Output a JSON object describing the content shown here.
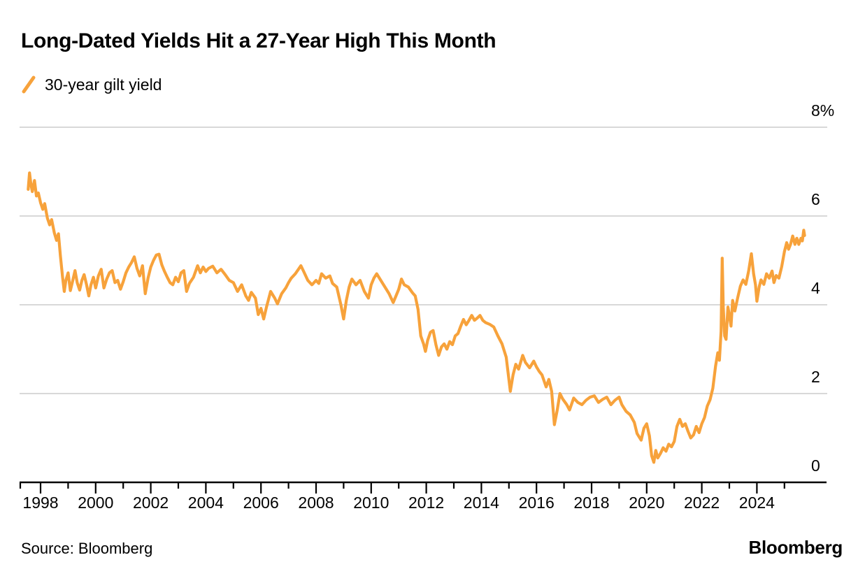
{
  "header": {
    "title": "Long-Dated Yields Hit a 27-Year High This Month"
  },
  "legend": {
    "label": "30-year gilt yield",
    "swatch_icon": "orange-slash-icon"
  },
  "footer": {
    "source": "Source: Bloomberg",
    "brand": "Bloomberg"
  },
  "colors": {
    "line": "#F7A23B",
    "grid": "#CCCCCC",
    "axis": "#000000",
    "text": "#000000",
    "background": "#FFFFFF"
  },
  "chart_data": {
    "type": "line",
    "title": "Long-Dated Yields Hit a 27-Year High This Month",
    "xlabel": "",
    "ylabel": "",
    "unit": "%",
    "grid": "horizontal",
    "legend_position": "top-left",
    "x_axis": {
      "range_years": [
        1997.2,
        2026.5
      ],
      "label_years": [
        1998,
        2000,
        2002,
        2004,
        2006,
        2008,
        2010,
        2012,
        2014,
        2016,
        2018,
        2020,
        2022,
        2024
      ],
      "minor_tick_years": [
        1999,
        2001,
        2003,
        2005,
        2007,
        2009,
        2011,
        2013,
        2015,
        2017,
        2019,
        2021,
        2023,
        2025
      ]
    },
    "y_axis": {
      "range": [
        0,
        8
      ],
      "gridline_values": [
        2,
        4,
        6,
        8
      ],
      "labels": [
        {
          "value": 8,
          "text": "8%"
        },
        {
          "value": 6,
          "text": "6"
        },
        {
          "value": 4,
          "text": "4"
        },
        {
          "value": 2,
          "text": "2"
        },
        {
          "value": 0,
          "text": "0"
        }
      ]
    },
    "series": [
      {
        "name": "30-year gilt yield",
        "color": "#F7A23B",
        "points": [
          [
            1997.55,
            6.6
          ],
          [
            1997.6,
            6.97
          ],
          [
            1997.65,
            6.72
          ],
          [
            1997.7,
            6.55
          ],
          [
            1997.78,
            6.8
          ],
          [
            1997.85,
            6.45
          ],
          [
            1997.92,
            6.52
          ],
          [
            1998.0,
            6.3
          ],
          [
            1998.08,
            6.15
          ],
          [
            1998.15,
            6.28
          ],
          [
            1998.25,
            5.95
          ],
          [
            1998.33,
            5.8
          ],
          [
            1998.4,
            5.92
          ],
          [
            1998.5,
            5.62
          ],
          [
            1998.58,
            5.45
          ],
          [
            1998.65,
            5.6
          ],
          [
            1998.72,
            5.1
          ],
          [
            1998.8,
            4.62
          ],
          [
            1998.86,
            4.3
          ],
          [
            1998.92,
            4.55
          ],
          [
            1999.0,
            4.72
          ],
          [
            1999.08,
            4.32
          ],
          [
            1999.17,
            4.55
          ],
          [
            1999.25,
            4.77
          ],
          [
            1999.33,
            4.5
          ],
          [
            1999.42,
            4.33
          ],
          [
            1999.5,
            4.55
          ],
          [
            1999.58,
            4.68
          ],
          [
            1999.67,
            4.45
          ],
          [
            1999.75,
            4.2
          ],
          [
            1999.83,
            4.45
          ],
          [
            1999.92,
            4.62
          ],
          [
            2000.0,
            4.38
          ],
          [
            2000.1,
            4.65
          ],
          [
            2000.2,
            4.8
          ],
          [
            2000.3,
            4.38
          ],
          [
            2000.4,
            4.58
          ],
          [
            2000.5,
            4.72
          ],
          [
            2000.6,
            4.77
          ],
          [
            2000.7,
            4.5
          ],
          [
            2000.8,
            4.55
          ],
          [
            2000.9,
            4.35
          ],
          [
            2001.0,
            4.52
          ],
          [
            2001.1,
            4.72
          ],
          [
            2001.2,
            4.85
          ],
          [
            2001.3,
            4.95
          ],
          [
            2001.4,
            5.08
          ],
          [
            2001.5,
            4.82
          ],
          [
            2001.6,
            4.65
          ],
          [
            2001.7,
            4.88
          ],
          [
            2001.8,
            4.25
          ],
          [
            2001.9,
            4.6
          ],
          [
            2002.0,
            4.85
          ],
          [
            2002.1,
            5.0
          ],
          [
            2002.2,
            5.12
          ],
          [
            2002.3,
            5.14
          ],
          [
            2002.4,
            4.9
          ],
          [
            2002.5,
            4.75
          ],
          [
            2002.6,
            4.62
          ],
          [
            2002.7,
            4.5
          ],
          [
            2002.8,
            4.45
          ],
          [
            2002.9,
            4.62
          ],
          [
            2003.0,
            4.52
          ],
          [
            2003.1,
            4.72
          ],
          [
            2003.2,
            4.77
          ],
          [
            2003.3,
            4.3
          ],
          [
            2003.4,
            4.48
          ],
          [
            2003.55,
            4.62
          ],
          [
            2003.7,
            4.88
          ],
          [
            2003.8,
            4.72
          ],
          [
            2003.9,
            4.85
          ],
          [
            2004.0,
            4.75
          ],
          [
            2004.1,
            4.82
          ],
          [
            2004.25,
            4.87
          ],
          [
            2004.4,
            4.72
          ],
          [
            2004.55,
            4.8
          ],
          [
            2004.7,
            4.68
          ],
          [
            2004.85,
            4.55
          ],
          [
            2005.0,
            4.5
          ],
          [
            2005.15,
            4.3
          ],
          [
            2005.3,
            4.45
          ],
          [
            2005.45,
            4.2
          ],
          [
            2005.55,
            4.1
          ],
          [
            2005.65,
            4.28
          ],
          [
            2005.8,
            4.15
          ],
          [
            2005.9,
            3.78
          ],
          [
            2006.0,
            3.92
          ],
          [
            2006.1,
            3.68
          ],
          [
            2006.2,
            3.95
          ],
          [
            2006.35,
            4.3
          ],
          [
            2006.5,
            4.15
          ],
          [
            2006.6,
            4.02
          ],
          [
            2006.75,
            4.25
          ],
          [
            2006.9,
            4.38
          ],
          [
            2007.0,
            4.5
          ],
          [
            2007.1,
            4.6
          ],
          [
            2007.25,
            4.7
          ],
          [
            2007.45,
            4.88
          ],
          [
            2007.55,
            4.75
          ],
          [
            2007.7,
            4.55
          ],
          [
            2007.85,
            4.45
          ],
          [
            2008.0,
            4.55
          ],
          [
            2008.1,
            4.48
          ],
          [
            2008.2,
            4.7
          ],
          [
            2008.35,
            4.6
          ],
          [
            2008.5,
            4.65
          ],
          [
            2008.6,
            4.48
          ],
          [
            2008.75,
            4.4
          ],
          [
            2008.9,
            4.0
          ],
          [
            2009.0,
            3.68
          ],
          [
            2009.1,
            4.1
          ],
          [
            2009.2,
            4.4
          ],
          [
            2009.3,
            4.58
          ],
          [
            2009.45,
            4.45
          ],
          [
            2009.6,
            4.55
          ],
          [
            2009.75,
            4.3
          ],
          [
            2009.9,
            4.15
          ],
          [
            2010.0,
            4.45
          ],
          [
            2010.1,
            4.6
          ],
          [
            2010.2,
            4.7
          ],
          [
            2010.35,
            4.55
          ],
          [
            2010.5,
            4.4
          ],
          [
            2010.65,
            4.25
          ],
          [
            2010.8,
            4.05
          ],
          [
            2010.9,
            4.2
          ],
          [
            2011.0,
            4.35
          ],
          [
            2011.1,
            4.58
          ],
          [
            2011.2,
            4.45
          ],
          [
            2011.35,
            4.4
          ],
          [
            2011.5,
            4.27
          ],
          [
            2011.6,
            4.2
          ],
          [
            2011.7,
            3.9
          ],
          [
            2011.8,
            3.3
          ],
          [
            2011.9,
            3.12
          ],
          [
            2011.97,
            2.95
          ],
          [
            2012.05,
            3.2
          ],
          [
            2012.15,
            3.38
          ],
          [
            2012.25,
            3.42
          ],
          [
            2012.35,
            3.1
          ],
          [
            2012.45,
            2.86
          ],
          [
            2012.55,
            3.05
          ],
          [
            2012.65,
            3.12
          ],
          [
            2012.75,
            3.0
          ],
          [
            2012.85,
            3.17
          ],
          [
            2012.95,
            3.1
          ],
          [
            2013.05,
            3.3
          ],
          [
            2013.15,
            3.35
          ],
          [
            2013.25,
            3.52
          ],
          [
            2013.35,
            3.67
          ],
          [
            2013.45,
            3.55
          ],
          [
            2013.55,
            3.65
          ],
          [
            2013.65,
            3.76
          ],
          [
            2013.75,
            3.65
          ],
          [
            2013.85,
            3.7
          ],
          [
            2013.95,
            3.76
          ],
          [
            2014.05,
            3.65
          ],
          [
            2014.15,
            3.6
          ],
          [
            2014.3,
            3.56
          ],
          [
            2014.45,
            3.5
          ],
          [
            2014.6,
            3.3
          ],
          [
            2014.75,
            3.12
          ],
          [
            2014.9,
            2.82
          ],
          [
            2015.05,
            2.05
          ],
          [
            2015.15,
            2.42
          ],
          [
            2015.25,
            2.66
          ],
          [
            2015.35,
            2.55
          ],
          [
            2015.5,
            2.86
          ],
          [
            2015.6,
            2.7
          ],
          [
            2015.75,
            2.58
          ],
          [
            2015.9,
            2.73
          ],
          [
            2016.0,
            2.6
          ],
          [
            2016.1,
            2.5
          ],
          [
            2016.2,
            2.42
          ],
          [
            2016.35,
            2.15
          ],
          [
            2016.45,
            2.32
          ],
          [
            2016.55,
            2.05
          ],
          [
            2016.65,
            1.3
          ],
          [
            2016.75,
            1.62
          ],
          [
            2016.85,
            2.0
          ],
          [
            2016.95,
            1.88
          ],
          [
            2017.1,
            1.75
          ],
          [
            2017.2,
            1.63
          ],
          [
            2017.35,
            1.9
          ],
          [
            2017.5,
            1.8
          ],
          [
            2017.65,
            1.75
          ],
          [
            2017.8,
            1.85
          ],
          [
            2017.95,
            1.92
          ],
          [
            2018.1,
            1.95
          ],
          [
            2018.25,
            1.8
          ],
          [
            2018.4,
            1.87
          ],
          [
            2018.55,
            1.92
          ],
          [
            2018.7,
            1.75
          ],
          [
            2018.85,
            1.85
          ],
          [
            2019.0,
            1.92
          ],
          [
            2019.1,
            1.75
          ],
          [
            2019.25,
            1.6
          ],
          [
            2019.4,
            1.52
          ],
          [
            2019.55,
            1.35
          ],
          [
            2019.65,
            1.1
          ],
          [
            2019.8,
            0.95
          ],
          [
            2019.9,
            1.22
          ],
          [
            2020.0,
            1.32
          ],
          [
            2020.1,
            1.05
          ],
          [
            2020.18,
            0.6
          ],
          [
            2020.26,
            0.45
          ],
          [
            2020.33,
            0.72
          ],
          [
            2020.4,
            0.55
          ],
          [
            2020.5,
            0.65
          ],
          [
            2020.6,
            0.78
          ],
          [
            2020.7,
            0.7
          ],
          [
            2020.8,
            0.86
          ],
          [
            2020.9,
            0.8
          ],
          [
            2021.0,
            0.92
          ],
          [
            2021.1,
            1.26
          ],
          [
            2021.2,
            1.42
          ],
          [
            2021.3,
            1.26
          ],
          [
            2021.4,
            1.32
          ],
          [
            2021.5,
            1.15
          ],
          [
            2021.6,
            1.0
          ],
          [
            2021.7,
            1.07
          ],
          [
            2021.8,
            1.26
          ],
          [
            2021.9,
            1.12
          ],
          [
            2022.0,
            1.32
          ],
          [
            2022.1,
            1.46
          ],
          [
            2022.2,
            1.72
          ],
          [
            2022.3,
            1.86
          ],
          [
            2022.4,
            2.12
          ],
          [
            2022.5,
            2.62
          ],
          [
            2022.58,
            2.92
          ],
          [
            2022.64,
            2.75
          ],
          [
            2022.7,
            3.4
          ],
          [
            2022.74,
            5.05
          ],
          [
            2022.78,
            3.95
          ],
          [
            2022.83,
            3.3
          ],
          [
            2022.88,
            3.22
          ],
          [
            2022.95,
            3.95
          ],
          [
            2023.0,
            3.76
          ],
          [
            2023.06,
            3.52
          ],
          [
            2023.12,
            4.1
          ],
          [
            2023.2,
            3.86
          ],
          [
            2023.3,
            4.15
          ],
          [
            2023.4,
            4.42
          ],
          [
            2023.5,
            4.56
          ],
          [
            2023.6,
            4.46
          ],
          [
            2023.7,
            4.76
          ],
          [
            2023.8,
            5.15
          ],
          [
            2023.88,
            4.7
          ],
          [
            2023.95,
            4.45
          ],
          [
            2024.0,
            4.08
          ],
          [
            2024.08,
            4.4
          ],
          [
            2024.15,
            4.56
          ],
          [
            2024.25,
            4.46
          ],
          [
            2024.35,
            4.7
          ],
          [
            2024.45,
            4.6
          ],
          [
            2024.55,
            4.76
          ],
          [
            2024.62,
            4.5
          ],
          [
            2024.7,
            4.66
          ],
          [
            2024.8,
            4.6
          ],
          [
            2024.9,
            4.86
          ],
          [
            2025.0,
            5.2
          ],
          [
            2025.08,
            5.4
          ],
          [
            2025.15,
            5.25
          ],
          [
            2025.22,
            5.36
          ],
          [
            2025.3,
            5.55
          ],
          [
            2025.38,
            5.36
          ],
          [
            2025.45,
            5.5
          ],
          [
            2025.52,
            5.36
          ],
          [
            2025.6,
            5.5
          ],
          [
            2025.65,
            5.44
          ],
          [
            2025.7,
            5.68
          ],
          [
            2025.73,
            5.56
          ]
        ]
      }
    ]
  }
}
